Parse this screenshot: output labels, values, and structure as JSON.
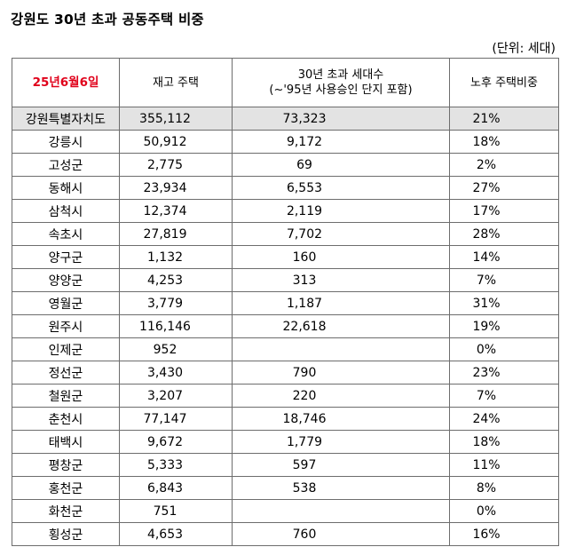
{
  "title": "강원도 30년 초과 공동주택 비중",
  "unit_label": "(단위: 세대)",
  "header": {
    "date": "25년6월6일",
    "stock": "재고 주택",
    "over30_line1": "30년 초과 세대수",
    "over30_line2": "(~'95년 사용승인 단지 포함)",
    "ratio": "노후 주택비중"
  },
  "rows": [
    {
      "region": "강원특별자치도",
      "stock": "355,112",
      "over30": "73,323",
      "ratio": "21%"
    },
    {
      "region": "강릉시",
      "stock": "50,912",
      "over30": "9,172",
      "ratio": "18%"
    },
    {
      "region": "고성군",
      "stock": "2,775",
      "over30": "69",
      "ratio": "2%"
    },
    {
      "region": "동해시",
      "stock": "23,934",
      "over30": "6,553",
      "ratio": "27%"
    },
    {
      "region": "삼척시",
      "stock": "12,374",
      "over30": "2,119",
      "ratio": "17%"
    },
    {
      "region": "속초시",
      "stock": "27,819",
      "over30": "7,702",
      "ratio": "28%"
    },
    {
      "region": "양구군",
      "stock": "1,132",
      "over30": "160",
      "ratio": "14%"
    },
    {
      "region": "양양군",
      "stock": "4,253",
      "over30": "313",
      "ratio": "7%"
    },
    {
      "region": "영월군",
      "stock": "3,779",
      "over30": "1,187",
      "ratio": "31%"
    },
    {
      "region": "원주시",
      "stock": "116,146",
      "over30": "22,618",
      "ratio": "19%"
    },
    {
      "region": "인제군",
      "stock": "952",
      "over30": "",
      "ratio": "0%"
    },
    {
      "region": "정선군",
      "stock": "3,430",
      "over30": "790",
      "ratio": "23%"
    },
    {
      "region": "철원군",
      "stock": "3,207",
      "over30": "220",
      "ratio": "7%"
    },
    {
      "region": "춘천시",
      "stock": "77,147",
      "over30": "18,746",
      "ratio": "24%"
    },
    {
      "region": "태백시",
      "stock": "9,672",
      "over30": "1,779",
      "ratio": "18%"
    },
    {
      "region": "평창군",
      "stock": "5,333",
      "over30": "597",
      "ratio": "11%"
    },
    {
      "region": "홍천군",
      "stock": "6,843",
      "over30": "538",
      "ratio": "8%"
    },
    {
      "region": "화천군",
      "stock": "751",
      "over30": "",
      "ratio": "0%"
    },
    {
      "region": "횡성군",
      "stock": "4,653",
      "over30": "760",
      "ratio": "16%"
    }
  ]
}
